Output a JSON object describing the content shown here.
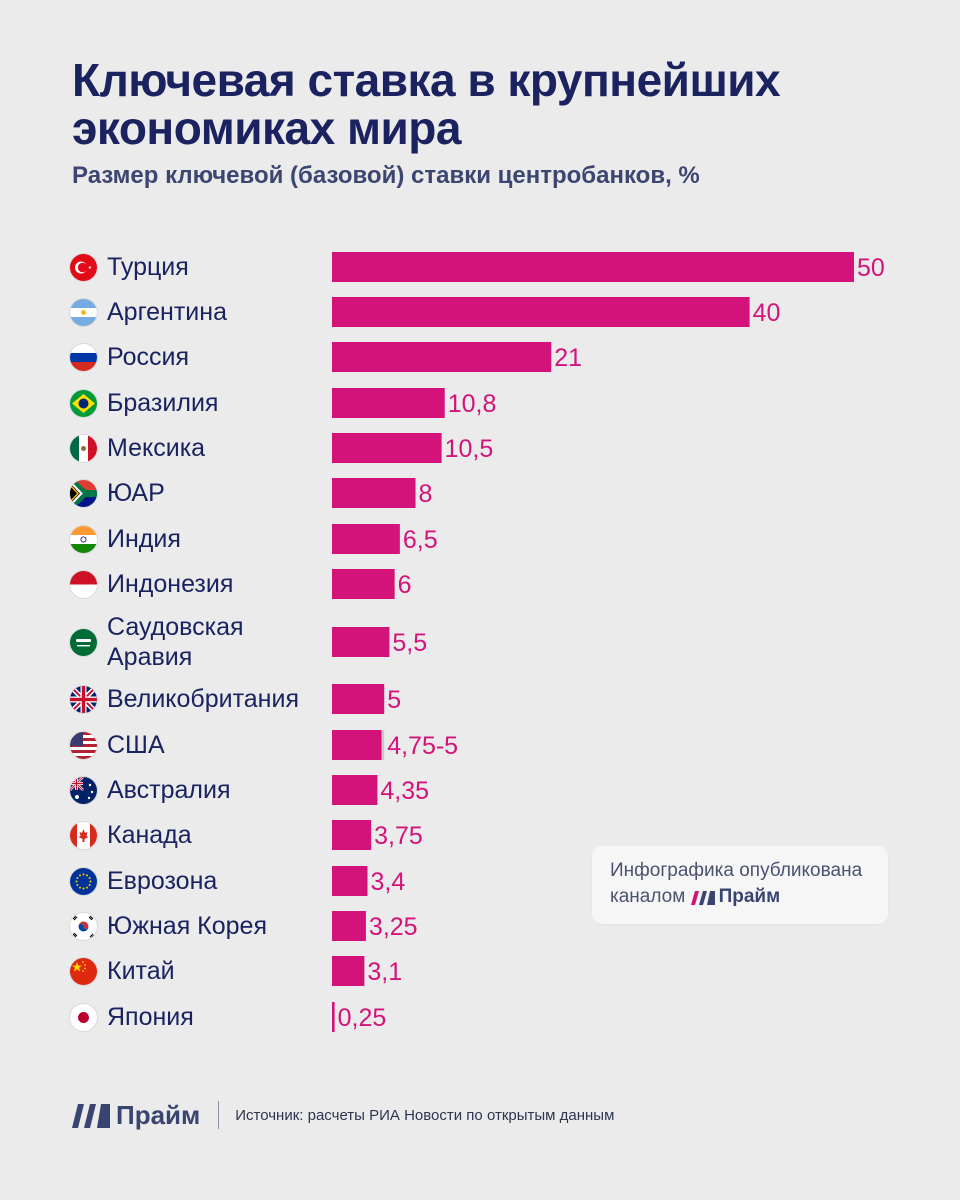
{
  "title": "Ключевая ставка в крупнейших экономиках мира",
  "subtitle": "Размер ключевой (базовой) ставки центробанков, %",
  "note": {
    "text": "Инфографика опубликована каналом",
    "brand": "Прайм"
  },
  "footer": {
    "logo": "Прайм",
    "source": "Источник: расчеты РИА Новости по открытым данным"
  },
  "colors": {
    "bar": "#d3137a",
    "bar_extra": "#c9c9cc",
    "label": "#d3137a",
    "text": "#1a2360"
  },
  "chart_data": {
    "type": "bar",
    "orientation": "horizontal",
    "title": "Ключевая ставка в крупнейших экономиках мира",
    "ylabel": "Размер ключевой (базовой) ставки центробанков, %",
    "xlim": [
      0,
      50
    ],
    "categories": [
      "Турция",
      "Аргентина",
      "Россия",
      "Бразилия",
      "Мексика",
      "ЮАР",
      "Индия",
      "Индонезия",
      "Саудовская Аравия",
      "Великобритания",
      "США",
      "Австралия",
      "Канада",
      "Еврозона",
      "Южная Корея",
      "Китай",
      "Япония"
    ],
    "values": [
      50,
      40,
      21,
      10.8,
      10.5,
      8,
      6.5,
      6,
      5.5,
      5,
      5,
      4.35,
      3.75,
      3.4,
      3.25,
      3.1,
      0.25
    ],
    "range_low": [
      null,
      null,
      null,
      null,
      null,
      null,
      null,
      null,
      null,
      null,
      4.75,
      null,
      null,
      null,
      null,
      null,
      null
    ],
    "value_labels": [
      "50",
      "40",
      "21",
      "10,8",
      "10,5",
      "8",
      "6,5",
      "6",
      "5,5",
      "5",
      "4,75-5",
      "4,35",
      "3,75",
      "3,4",
      "3,25",
      "3,1",
      "0,25"
    ],
    "flags": [
      "turkey-flag-icon",
      "argentina-flag-icon",
      "russia-flag-icon",
      "brazil-flag-icon",
      "mexico-flag-icon",
      "south-africa-flag-icon",
      "india-flag-icon",
      "indonesia-flag-icon",
      "saudi-arabia-flag-icon",
      "uk-flag-icon",
      "usa-flag-icon",
      "australia-flag-icon",
      "canada-flag-icon",
      "eurozone-flag-icon",
      "south-korea-flag-icon",
      "china-flag-icon",
      "japan-flag-icon"
    ]
  }
}
